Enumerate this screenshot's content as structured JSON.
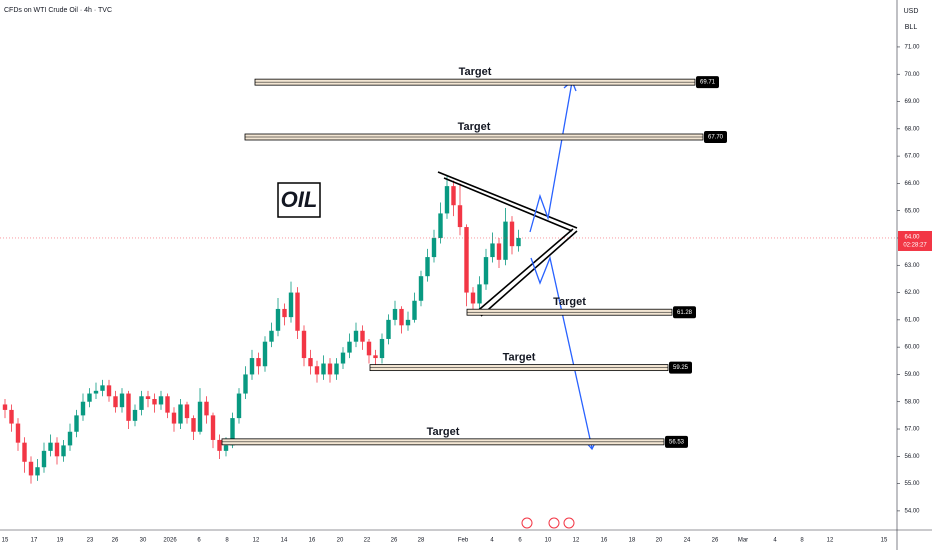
{
  "chart_data": {
    "type": "candlestick",
    "title": "CFDs on WTI Crude Oil · 4h · TVC",
    "currency": "USD",
    "unit": "BLL",
    "annotation": "OIL",
    "ylim": [
      53.3,
      72.72
    ],
    "yticks": [
      {
        "value": 54,
        "label": "54.00"
      },
      {
        "value": 55,
        "label": "55.00"
      },
      {
        "value": 56,
        "label": "56.00"
      },
      {
        "value": 57,
        "label": "57.00"
      },
      {
        "value": 58,
        "label": "58.00"
      },
      {
        "value": 59,
        "label": "59.00"
      },
      {
        "value": 60,
        "label": "60.00"
      },
      {
        "value": 61,
        "label": "61.00"
      },
      {
        "value": 62,
        "label": "62.00"
      },
      {
        "value": 63,
        "label": "63.00"
      },
      {
        "value": 64,
        "label": "64.00"
      },
      {
        "value": 65,
        "label": "65.00"
      },
      {
        "value": 66,
        "label": "66.00"
      },
      {
        "value": 67,
        "label": "67.00"
      },
      {
        "value": 68,
        "label": "68.00"
      },
      {
        "value": 69,
        "label": "69.00"
      },
      {
        "value": 70,
        "label": "70.00"
      },
      {
        "value": 71,
        "label": "71.00"
      }
    ],
    "x_labels": [
      "15",
      "17",
      "19",
      "23",
      "26",
      "30",
      "2026",
      "6",
      "8",
      "12",
      "14",
      "16",
      "20",
      "22",
      "26",
      "28",
      "Feb",
      "4",
      "6",
      "10",
      "12",
      "16",
      "18",
      "20",
      "24",
      "26",
      "Mar",
      "4",
      "8",
      "12",
      "15"
    ],
    "up_color": "#089981",
    "down_color": "#f23645",
    "ohlc": [
      [
        57.9,
        58.1,
        57.4,
        57.7
      ],
      [
        57.7,
        57.9,
        56.9,
        57.2
      ],
      [
        57.2,
        57.4,
        56.2,
        56.5
      ],
      [
        56.5,
        56.7,
        55.4,
        55.8
      ],
      [
        55.8,
        56.0,
        55.0,
        55.3
      ],
      [
        55.3,
        55.9,
        55.1,
        55.6
      ],
      [
        55.6,
        56.5,
        55.4,
        56.2
      ],
      [
        56.2,
        56.8,
        56.0,
        56.5
      ],
      [
        56.5,
        56.7,
        55.7,
        56.0
      ],
      [
        56.0,
        56.6,
        55.8,
        56.4
      ],
      [
        56.4,
        57.2,
        56.2,
        56.9
      ],
      [
        56.9,
        57.7,
        56.7,
        57.5
      ],
      [
        57.5,
        58.3,
        57.3,
        58.0
      ],
      [
        58.0,
        58.5,
        57.8,
        58.3
      ],
      [
        58.3,
        58.7,
        58.1,
        58.4
      ],
      [
        58.4,
        58.8,
        58.2,
        58.6
      ],
      [
        58.6,
        58.8,
        58.0,
        58.2
      ],
      [
        58.2,
        58.4,
        57.6,
        57.8
      ],
      [
        57.8,
        58.5,
        57.6,
        58.3
      ],
      [
        58.3,
        58.4,
        57.0,
        57.3
      ],
      [
        57.3,
        57.9,
        57.1,
        57.7
      ],
      [
        57.7,
        58.4,
        57.5,
        58.2
      ],
      [
        58.2,
        58.4,
        57.8,
        58.1
      ],
      [
        58.1,
        58.3,
        57.6,
        57.9
      ],
      [
        57.9,
        58.4,
        57.7,
        58.2
      ],
      [
        58.2,
        58.3,
        57.4,
        57.6
      ],
      [
        57.6,
        57.8,
        56.9,
        57.2
      ],
      [
        57.2,
        58.1,
        57.0,
        57.9
      ],
      [
        57.9,
        58.0,
        57.2,
        57.4
      ],
      [
        57.4,
        57.5,
        56.6,
        56.9
      ],
      [
        56.9,
        58.5,
        56.8,
        58.0
      ],
      [
        58.0,
        58.2,
        57.2,
        57.5
      ],
      [
        57.5,
        57.6,
        56.3,
        56.6
      ],
      [
        56.6,
        56.8,
        55.9,
        56.2
      ],
      [
        56.2,
        56.7,
        56.0,
        56.4
      ],
      [
        56.4,
        57.6,
        56.3,
        57.4
      ],
      [
        57.4,
        58.5,
        57.2,
        58.3
      ],
      [
        58.3,
        59.3,
        58.1,
        59.0
      ],
      [
        59.0,
        59.9,
        58.8,
        59.6
      ],
      [
        59.6,
        59.8,
        59.0,
        59.3
      ],
      [
        59.3,
        60.4,
        59.1,
        60.2
      ],
      [
        60.2,
        60.9,
        60.0,
        60.6
      ],
      [
        60.6,
        61.8,
        60.4,
        61.4
      ],
      [
        61.4,
        61.6,
        60.8,
        61.1
      ],
      [
        61.1,
        62.4,
        60.9,
        62.0
      ],
      [
        62.0,
        62.2,
        60.3,
        60.6
      ],
      [
        60.6,
        60.8,
        59.3,
        59.6
      ],
      [
        59.6,
        59.9,
        59.0,
        59.3
      ],
      [
        59.3,
        59.5,
        58.7,
        59.0
      ],
      [
        59.0,
        59.7,
        58.8,
        59.4
      ],
      [
        59.4,
        59.6,
        58.7,
        59.0
      ],
      [
        59.0,
        59.6,
        58.8,
        59.4
      ],
      [
        59.4,
        60.0,
        59.2,
        59.8
      ],
      [
        59.8,
        60.5,
        59.6,
        60.2
      ],
      [
        60.2,
        60.9,
        60.0,
        60.6
      ],
      [
        60.6,
        60.8,
        59.9,
        60.2
      ],
      [
        60.2,
        60.3,
        59.4,
        59.7
      ],
      [
        59.7,
        59.9,
        59.2,
        59.6
      ],
      [
        59.6,
        60.5,
        59.4,
        60.3
      ],
      [
        60.3,
        61.2,
        60.1,
        61.0
      ],
      [
        61.0,
        61.7,
        60.8,
        61.4
      ],
      [
        61.4,
        61.5,
        60.5,
        60.8
      ],
      [
        60.8,
        61.3,
        60.6,
        61.0
      ],
      [
        61.0,
        62.0,
        60.9,
        61.7
      ],
      [
        61.7,
        62.8,
        61.5,
        62.6
      ],
      [
        62.6,
        63.6,
        62.4,
        63.3
      ],
      [
        63.3,
        64.3,
        63.1,
        64.0
      ],
      [
        64.0,
        65.3,
        63.8,
        64.9
      ],
      [
        64.9,
        66.3,
        64.7,
        65.9
      ],
      [
        65.9,
        66.1,
        64.8,
        65.2
      ],
      [
        65.2,
        66.0,
        64.1,
        64.4
      ],
      [
        64.4,
        64.5,
        61.5,
        62.0
      ],
      [
        62.0,
        62.2,
        61.3,
        61.6
      ],
      [
        61.6,
        62.6,
        61.4,
        62.3
      ],
      [
        62.3,
        63.6,
        62.1,
        63.3
      ],
      [
        63.3,
        64.2,
        63.1,
        63.8
      ],
      [
        63.8,
        64.0,
        62.9,
        63.2
      ],
      [
        63.2,
        65.1,
        63.0,
        64.6
      ],
      [
        64.6,
        64.8,
        63.4,
        63.7
      ],
      [
        63.7,
        64.3,
        63.5,
        64.0
      ]
    ],
    "levels": [
      {
        "label": "Target",
        "price": {
          "value": 69.71,
          "label": "69.71"
        }
      },
      {
        "label": "Target",
        "price": {
          "value": 67.7,
          "label": "67.70"
        }
      },
      {
        "label": "Target",
        "price": {
          "value": 61.28,
          "label": "61.28"
        }
      },
      {
        "label": "Target",
        "price": {
          "value": 59.25,
          "label": "59.25"
        }
      },
      {
        "label": "Target",
        "price": {
          "value": 56.53,
          "label": "56.53"
        }
      }
    ],
    "last_price": {
      "value": 64,
      "label": "64.00"
    },
    "countdown": "02:28:27"
  }
}
